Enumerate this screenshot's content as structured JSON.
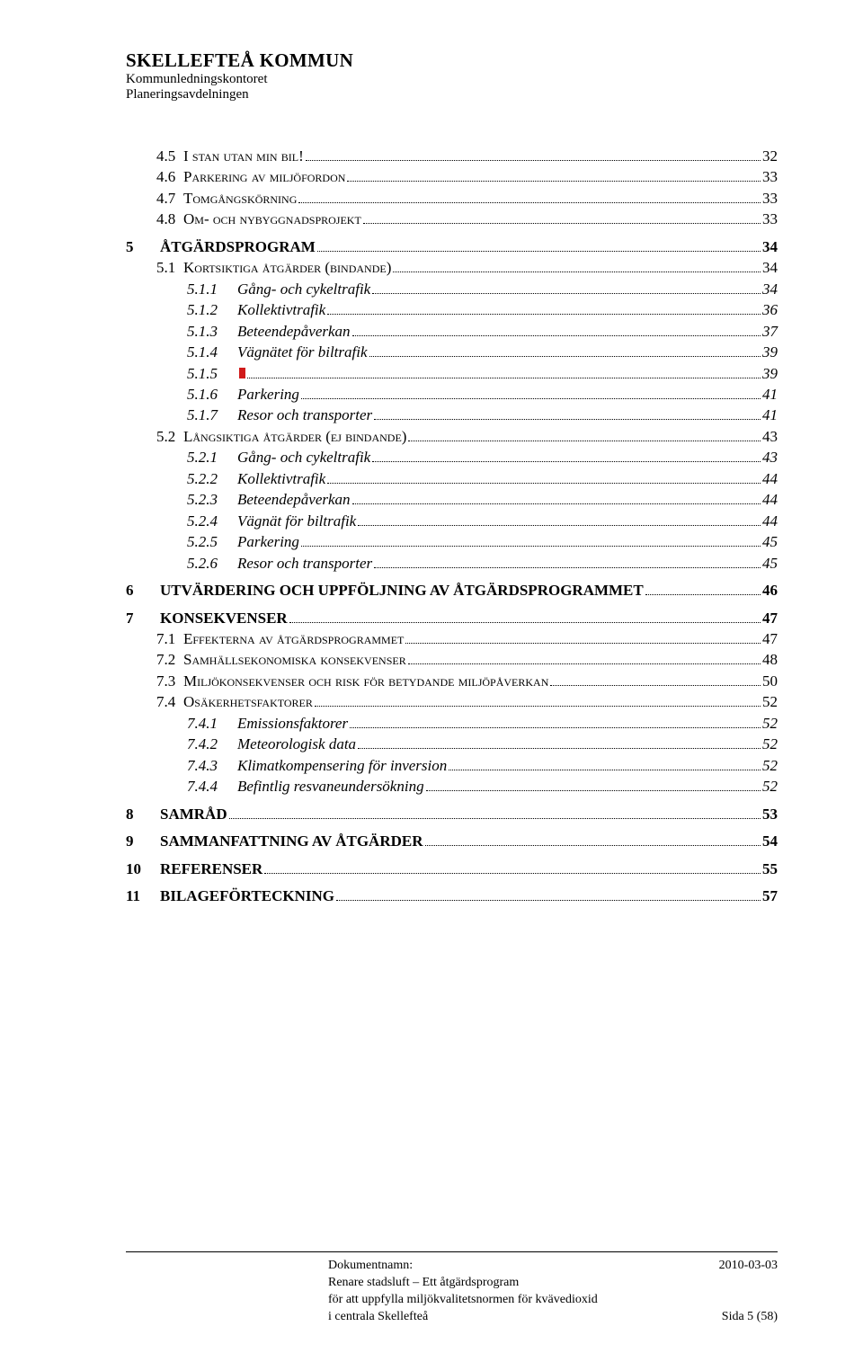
{
  "header": {
    "org_name": "SKELLEFTEÅ KOMMUN",
    "dept1": "Kommunledningskontoret",
    "dept2": "Planeringsavdelningen"
  },
  "toc": [
    {
      "level": 1,
      "num": "4.5",
      "title": "I stan utan min bil!",
      "page": "32"
    },
    {
      "level": 1,
      "num": "4.6",
      "title": "Parkering av miljöfordon",
      "page": "33"
    },
    {
      "level": 1,
      "num": "4.7",
      "title": "Tomgångskörning",
      "page": "33"
    },
    {
      "level": 1,
      "num": "4.8",
      "title": "Om- och nybyggnadsprojekt",
      "page": "33"
    },
    {
      "spacer": true
    },
    {
      "level": 0,
      "num": "5",
      "title": "Åtgärdsprogram",
      "page": "34"
    },
    {
      "level": 1,
      "num": "5.1",
      "title": "Kortsiktiga åtgärder (bindande)",
      "page": "34"
    },
    {
      "level": 2,
      "num": "5.1.1",
      "title": "Gång- och cykeltrafik",
      "page": "34"
    },
    {
      "level": 2,
      "num": "5.1.2",
      "title": "Kollektivtrafik",
      "page": "36"
    },
    {
      "level": 2,
      "num": "5.1.3",
      "title": "Beteendepåverkan",
      "page": "37"
    },
    {
      "level": 2,
      "num": "5.1.4",
      "title": "Vägnätet för biltrafik",
      "page": "39"
    },
    {
      "level": 2,
      "num": "5.1.5",
      "title": "",
      "redmark": true,
      "page": "39"
    },
    {
      "level": 2,
      "num": "5.1.6",
      "title": "Parkering",
      "page": "41"
    },
    {
      "level": 2,
      "num": "5.1.7",
      "title": "Resor och transporter",
      "page": "41"
    },
    {
      "level": 1,
      "num": "5.2",
      "title": "Långsiktiga åtgärder (ej bindande)",
      "page": "43"
    },
    {
      "level": 2,
      "num": "5.2.1",
      "title": "Gång- och cykeltrafik",
      "page": "43"
    },
    {
      "level": 2,
      "num": "5.2.2",
      "title": "Kollektivtrafik",
      "page": "44"
    },
    {
      "level": 2,
      "num": "5.2.3",
      "title": "Beteendepåverkan",
      "page": "44"
    },
    {
      "level": 2,
      "num": "5.2.4",
      "title": "Vägnät för biltrafik",
      "page": "44"
    },
    {
      "level": 2,
      "num": "5.2.5",
      "title": "Parkering",
      "page": "45"
    },
    {
      "level": 2,
      "num": "5.2.6",
      "title": "Resor och transporter",
      "page": "45"
    },
    {
      "spacer": true
    },
    {
      "level": 0,
      "num": "6",
      "title": "Utvärdering och uppföljning av åtgärdsprogrammet",
      "page": "46"
    },
    {
      "spacer": true
    },
    {
      "level": 0,
      "num": "7",
      "title": "Konsekvenser",
      "page": "47"
    },
    {
      "level": 1,
      "num": "7.1",
      "title": "Effekterna av åtgärdsprogrammet",
      "page": "47"
    },
    {
      "level": 1,
      "num": "7.2",
      "title": "Samhällsekonomiska konsekvenser",
      "page": "48"
    },
    {
      "level": 1,
      "num": "7.3",
      "title": "Miljökonsekvenser och risk för betydande miljöpåverkan",
      "page": "50"
    },
    {
      "level": 1,
      "num": "7.4",
      "title": "Osäkerhetsfaktorer",
      "page": "52"
    },
    {
      "level": 2,
      "num": "7.4.1",
      "title": "Emissionsfaktorer",
      "page": "52"
    },
    {
      "level": 2,
      "num": "7.4.2",
      "title": "Meteorologisk data",
      "page": "52"
    },
    {
      "level": 2,
      "num": "7.4.3",
      "title": "Klimatkompensering för inversion",
      "page": "52"
    },
    {
      "level": 2,
      "num": "7.4.4",
      "title": "Befintlig resvaneundersökning",
      "page": "52"
    },
    {
      "spacer": true
    },
    {
      "level": 0,
      "num": "8",
      "title": "Samråd",
      "page": "53"
    },
    {
      "spacer": true
    },
    {
      "level": 0,
      "num": "9",
      "title": "Sammanfattning av åtgärder",
      "page": "54"
    },
    {
      "spacer": true
    },
    {
      "level": 0,
      "num": "10",
      "title": "Referenser",
      "page": "55"
    },
    {
      "spacer": true
    },
    {
      "level": 0,
      "num": "11",
      "title": "Bilageförteckning",
      "page": "57"
    }
  ],
  "footer": {
    "doc_label": "Dokumentnamn:",
    "doc_line1": "Renare stadsluft – Ett åtgärdsprogram",
    "doc_line2": "för att uppfylla miljökvalitetsnormen för kvävedioxid",
    "doc_line3": "i centrala Skellefteå",
    "date": "2010-03-03",
    "page_info": "Sida 5 (58)"
  }
}
